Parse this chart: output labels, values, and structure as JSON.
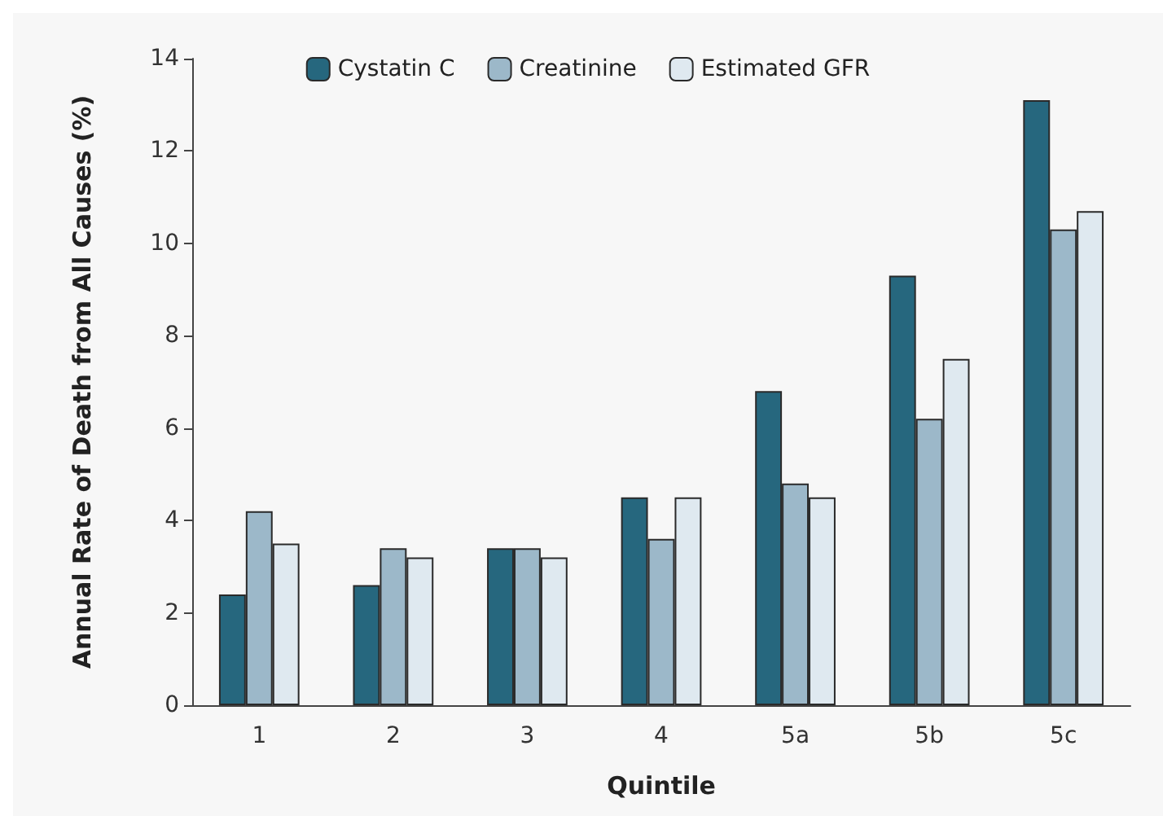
{
  "chart_data": {
    "type": "bar",
    "xlabel": "Quintile",
    "ylabel": "Annual Rate of Death from All Causes (%)",
    "categories": [
      "1",
      "2",
      "3",
      "4",
      "5a",
      "5b",
      "5c"
    ],
    "series": [
      {
        "name": "Cystatin C",
        "color": "#26677e",
        "values": [
          2.4,
          2.6,
          3.4,
          4.5,
          6.8,
          9.3,
          13.1
        ]
      },
      {
        "name": "Creatinine",
        "color": "#9cb8c9",
        "values": [
          4.2,
          3.4,
          3.4,
          3.6,
          4.8,
          6.2,
          10.3
        ]
      },
      {
        "name": "Estimated GFR",
        "color": "#dfe9f0",
        "values": [
          3.5,
          3.2,
          3.2,
          4.5,
          4.5,
          7.5,
          10.7
        ]
      }
    ],
    "ylim": [
      0,
      14
    ],
    "yticks": [
      0,
      2,
      4,
      6,
      8,
      10,
      12,
      14
    ],
    "grid": false,
    "legend": "top"
  }
}
